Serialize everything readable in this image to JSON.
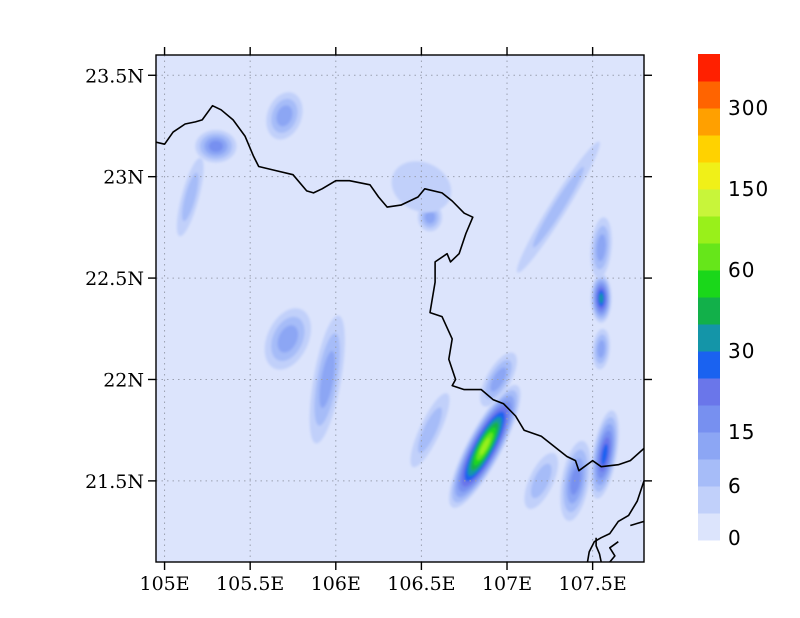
{
  "map": {
    "type": "filled-contour-map",
    "projection": "lat-lon",
    "lon_range": [
      104.95,
      107.8
    ],
    "lat_range": [
      21.1,
      23.6
    ],
    "gridlines": "dotted",
    "lon_ticks": [
      {
        "value": 105.0,
        "label": "105E"
      },
      {
        "value": 105.5,
        "label": "105.5E"
      },
      {
        "value": 106.0,
        "label": "106E"
      },
      {
        "value": 106.5,
        "label": "106.5E"
      },
      {
        "value": 107.0,
        "label": "107E"
      },
      {
        "value": 107.5,
        "label": "107.5E"
      }
    ],
    "lat_ticks": [
      {
        "value": 23.5,
        "label": "23.5N"
      },
      {
        "value": 23.0,
        "label": "23N"
      },
      {
        "value": 22.5,
        "label": "22.5N"
      },
      {
        "value": 22.0,
        "label": "22N"
      },
      {
        "value": 21.5,
        "label": "21.5N"
      }
    ]
  },
  "colorbar": {
    "levels": [
      "0",
      "3",
      "6",
      "10",
      "15",
      "20",
      "25",
      "30",
      "40",
      "50",
      "60",
      "80",
      "100",
      "150",
      "200",
      "250",
      "300",
      "350"
    ],
    "labels": [
      {
        "level_index": 0,
        "text": "0"
      },
      {
        "level_index": 2,
        "text": "6"
      },
      {
        "level_index": 4,
        "text": "15"
      },
      {
        "level_index": 7,
        "text": "30"
      },
      {
        "level_index": 10,
        "text": "60"
      },
      {
        "level_index": 13,
        "text": "150"
      },
      {
        "level_index": 16,
        "text": "300"
      }
    ],
    "colors": [
      "#dce4fc",
      "#c1d0fa",
      "#a6bcf8",
      "#8ca6f4",
      "#7790f0",
      "#6a76ea",
      "#1a62f0",
      "#1495a8",
      "#12b04a",
      "#1ad71a",
      "#66e61a",
      "#99f01a",
      "#c8f53a",
      "#f0f018",
      "#ffd200",
      "#ffa000",
      "#ff6400",
      "#ff2000"
    ]
  },
  "precip_features": [
    {
      "cx": 106.87,
      "cy": 21.67,
      "rx": 0.1,
      "ry": 0.34,
      "rot": 28,
      "level": 11
    },
    {
      "cx": 107.57,
      "cy": 21.63,
      "rx": 0.07,
      "ry": 0.22,
      "rot": 10,
      "level": 6
    },
    {
      "cx": 107.55,
      "cy": 22.4,
      "rx": 0.06,
      "ry": 0.12,
      "rot": 0,
      "level": 7
    },
    {
      "cx": 105.3,
      "cy": 23.15,
      "rx": 0.12,
      "ry": 0.08,
      "rot": 0,
      "level": 4
    },
    {
      "cx": 105.7,
      "cy": 23.3,
      "rx": 0.1,
      "ry": 0.12,
      "rot": 20,
      "level": 3
    },
    {
      "cx": 105.15,
      "cy": 22.9,
      "rx": 0.05,
      "ry": 0.2,
      "rot": 15,
      "level": 2
    },
    {
      "cx": 105.95,
      "cy": 22.0,
      "rx": 0.08,
      "ry": 0.32,
      "rot": 10,
      "level": 3
    },
    {
      "cx": 105.72,
      "cy": 22.2,
      "rx": 0.12,
      "ry": 0.16,
      "rot": 25,
      "level": 3
    },
    {
      "cx": 107.55,
      "cy": 22.65,
      "rx": 0.06,
      "ry": 0.15,
      "rot": 5,
      "level": 3
    },
    {
      "cx": 107.55,
      "cy": 22.15,
      "rx": 0.05,
      "ry": 0.1,
      "rot": 5,
      "level": 3
    },
    {
      "cx": 107.3,
      "cy": 22.85,
      "rx": 0.05,
      "ry": 0.38,
      "rot": 32,
      "level": 2
    },
    {
      "cx": 106.55,
      "cy": 21.75,
      "rx": 0.06,
      "ry": 0.2,
      "rot": 25,
      "level": 2
    },
    {
      "cx": 106.95,
      "cy": 22.0,
      "rx": 0.07,
      "ry": 0.15,
      "rot": 30,
      "level": 3
    },
    {
      "cx": 107.2,
      "cy": 21.5,
      "rx": 0.07,
      "ry": 0.15,
      "rot": 25,
      "level": 2
    },
    {
      "cx": 107.4,
      "cy": 21.5,
      "rx": 0.08,
      "ry": 0.2,
      "rot": 10,
      "level": 4
    },
    {
      "cx": 106.55,
      "cy": 22.8,
      "rx": 0.07,
      "ry": 0.07,
      "rot": 0,
      "level": 3
    },
    {
      "cx": 106.5,
      "cy": 22.95,
      "rx": 0.18,
      "ry": 0.12,
      "rot": 25,
      "level": 1
    }
  ],
  "border_segments": [
    [
      [
        104.95,
        23.17
      ],
      [
        105.0,
        23.16
      ],
      [
        105.05,
        23.22
      ],
      [
        105.12,
        23.26
      ],
      [
        105.18,
        23.27
      ],
      [
        105.22,
        23.28
      ],
      [
        105.28,
        23.35
      ],
      [
        105.33,
        23.33
      ],
      [
        105.4,
        23.28
      ],
      [
        105.47,
        23.2
      ],
      [
        105.52,
        23.1
      ],
      [
        105.55,
        23.05
      ],
      [
        105.65,
        23.03
      ],
      [
        105.75,
        23.01
      ],
      [
        105.83,
        22.93
      ],
      [
        105.87,
        22.92
      ],
      [
        105.92,
        22.94
      ],
      [
        106.0,
        22.98
      ],
      [
        106.08,
        22.98
      ],
      [
        106.2,
        22.96
      ],
      [
        106.25,
        22.9
      ],
      [
        106.3,
        22.85
      ],
      [
        106.38,
        22.86
      ],
      [
        106.48,
        22.9
      ],
      [
        106.52,
        22.94
      ],
      [
        106.62,
        22.92
      ],
      [
        106.68,
        22.88
      ],
      [
        106.75,
        22.82
      ],
      [
        106.8,
        22.8
      ],
      [
        106.76,
        22.72
      ],
      [
        106.72,
        22.62
      ],
      [
        106.67,
        22.58
      ],
      [
        106.65,
        22.62
      ],
      [
        106.58,
        22.58
      ],
      [
        106.58,
        22.48
      ],
      [
        106.56,
        22.38
      ],
      [
        106.55,
        22.33
      ],
      [
        106.62,
        22.31
      ],
      [
        106.68,
        22.2
      ],
      [
        106.66,
        22.1
      ],
      [
        106.7,
        22.0
      ],
      [
        106.68,
        21.97
      ],
      [
        106.75,
        21.95
      ],
      [
        106.85,
        21.95
      ],
      [
        106.92,
        21.9
      ],
      [
        106.98,
        21.88
      ],
      [
        107.05,
        21.82
      ],
      [
        107.1,
        21.75
      ],
      [
        107.2,
        21.72
      ],
      [
        107.35,
        21.62
      ],
      [
        107.4,
        21.6
      ],
      [
        107.42,
        21.55
      ],
      [
        107.5,
        21.6
      ],
      [
        107.55,
        21.57
      ],
      [
        107.65,
        21.58
      ],
      [
        107.72,
        21.6
      ],
      [
        107.8,
        21.66
      ]
    ],
    [
      [
        107.8,
        21.5
      ],
      [
        107.76,
        21.4
      ],
      [
        107.71,
        21.33
      ],
      [
        107.65,
        21.3
      ],
      [
        107.6,
        21.24
      ],
      [
        107.55,
        21.22
      ],
      [
        107.51,
        21.2
      ],
      [
        107.48,
        21.15
      ],
      [
        107.47,
        21.1
      ]
    ],
    [
      [
        107.6,
        21.1
      ],
      [
        107.63,
        21.13
      ],
      [
        107.6,
        21.17
      ],
      [
        107.65,
        21.2
      ]
    ],
    [
      [
        107.72,
        21.28
      ],
      [
        107.8,
        21.3
      ]
    ],
    [
      [
        107.55,
        21.1
      ],
      [
        107.54,
        21.14
      ],
      [
        107.52,
        21.18
      ],
      [
        107.52,
        21.22
      ]
    ]
  ]
}
